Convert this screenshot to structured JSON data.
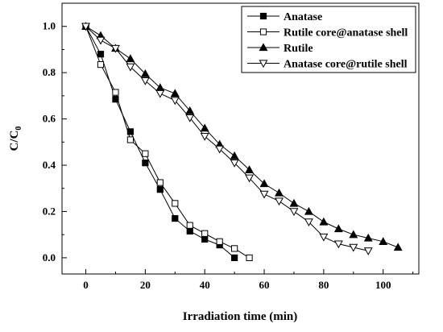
{
  "chart_data": {
    "type": "line",
    "title": "",
    "xlabel": "Irradiation time (min)",
    "ylabel": "C/C",
    "ylabel_subscript": "0",
    "xlim": [
      -8,
      112
    ],
    "ylim": [
      -0.07,
      1.1
    ],
    "x_ticks": [
      0,
      20,
      40,
      60,
      80,
      100
    ],
    "y_ticks": [
      0.0,
      0.2,
      0.4,
      0.6,
      0.8,
      1.0
    ],
    "x_tick_labels": [
      "0",
      "20",
      "40",
      "60",
      "80",
      "100"
    ],
    "y_tick_labels": [
      "0.0",
      "0.2",
      "0.4",
      "0.6",
      "0.8",
      "1.0"
    ],
    "grid": false,
    "legend_position": "top-right",
    "series": [
      {
        "name": "Anatase",
        "marker": "filled-square",
        "x": [
          0,
          5,
          10,
          15,
          20,
          25,
          30,
          35,
          40,
          45,
          50
        ],
        "y": [
          1.0,
          0.88,
          0.685,
          0.545,
          0.41,
          0.295,
          0.17,
          0.115,
          0.08,
          0.055,
          0.0
        ]
      },
      {
        "name": "Rutile core@anatase shell",
        "marker": "open-square",
        "x": [
          0,
          5,
          10,
          15,
          20,
          25,
          30,
          35,
          40,
          45,
          50,
          55
        ],
        "y": [
          1.0,
          0.835,
          0.715,
          0.51,
          0.45,
          0.325,
          0.235,
          0.14,
          0.105,
          0.07,
          0.04,
          0.0
        ]
      },
      {
        "name": "Rutile",
        "marker": "filled-triangle-up",
        "x": [
          0,
          5,
          10,
          15,
          20,
          25,
          30,
          35,
          40,
          45,
          50,
          55,
          60,
          65,
          70,
          75,
          80,
          85,
          90,
          95,
          100,
          105
        ],
        "y": [
          1.0,
          0.96,
          0.905,
          0.86,
          0.795,
          0.735,
          0.71,
          0.635,
          0.56,
          0.49,
          0.44,
          0.38,
          0.32,
          0.28,
          0.235,
          0.2,
          0.155,
          0.125,
          0.1,
          0.085,
          0.07,
          0.045
        ]
      },
      {
        "name": "Anatase core@rutile shell",
        "marker": "open-triangle-down",
        "x": [
          0,
          5,
          10,
          15,
          20,
          25,
          30,
          35,
          40,
          45,
          50,
          55,
          60,
          65,
          70,
          75,
          80,
          85,
          90,
          95
        ],
        "y": [
          1.0,
          0.94,
          0.905,
          0.825,
          0.765,
          0.71,
          0.68,
          0.605,
          0.525,
          0.47,
          0.41,
          0.345,
          0.275,
          0.245,
          0.2,
          0.155,
          0.09,
          0.06,
          0.045,
          0.03
        ]
      }
    ]
  }
}
